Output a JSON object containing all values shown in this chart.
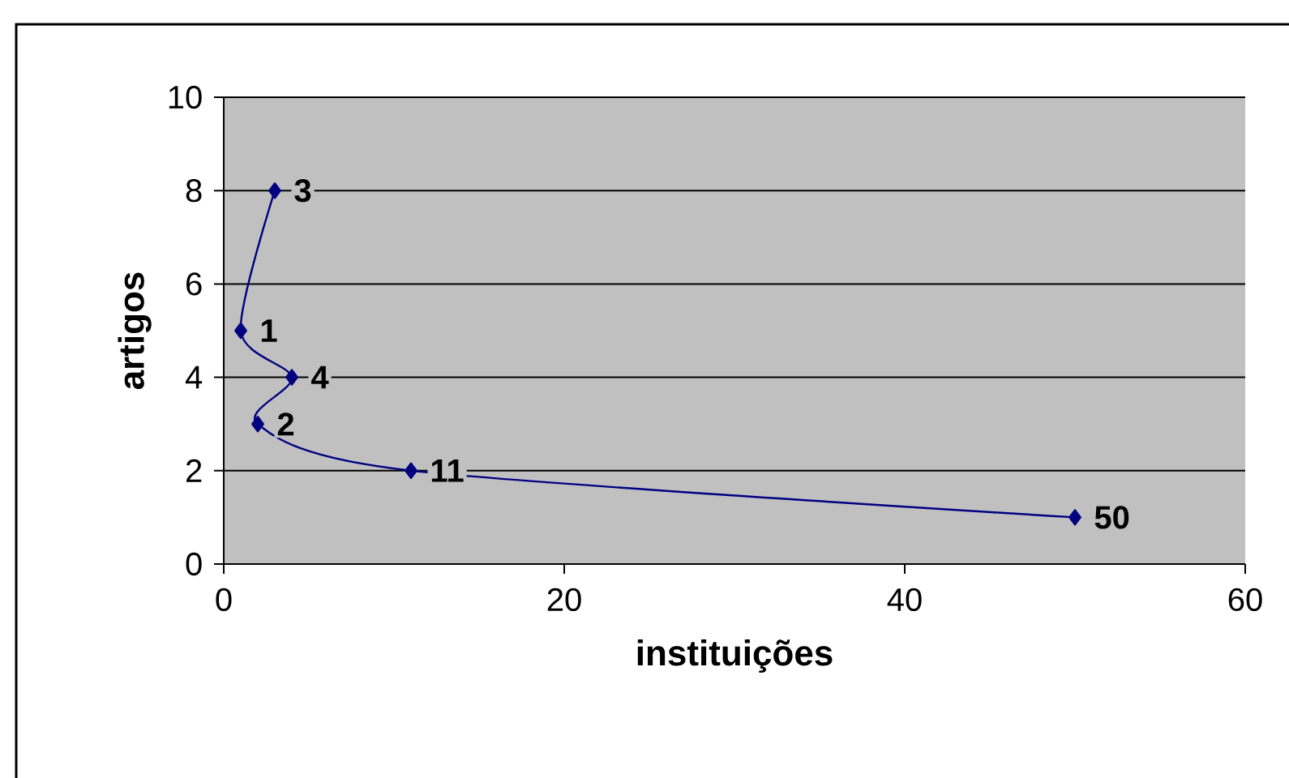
{
  "chart_data": {
    "type": "line",
    "xlabel": "instituições",
    "ylabel": "artigos",
    "x": [
      3,
      1,
      4,
      2,
      11,
      50
    ],
    "values": [
      8,
      5,
      4,
      3,
      2,
      1
    ],
    "annotations": [
      {
        "text": "3",
        "x": 3,
        "y": 8
      },
      {
        "text": "1",
        "x": 1,
        "y": 5
      },
      {
        "text": "4",
        "x": 4,
        "y": 4
      },
      {
        "text": "2",
        "x": 2,
        "y": 3
      },
      {
        "text": "11",
        "x": 11,
        "y": 2
      },
      {
        "text": "50",
        "x": 50,
        "y": 1
      }
    ],
    "color": "#000080",
    "marker": "diamond",
    "line_style": "solid",
    "xlim": [
      0,
      60
    ],
    "xticks": [
      0,
      20,
      40,
      60
    ],
    "ylim": [
      0,
      10
    ],
    "yticks": [
      0,
      2,
      4,
      6,
      8,
      10
    ],
    "grid": "y"
  }
}
